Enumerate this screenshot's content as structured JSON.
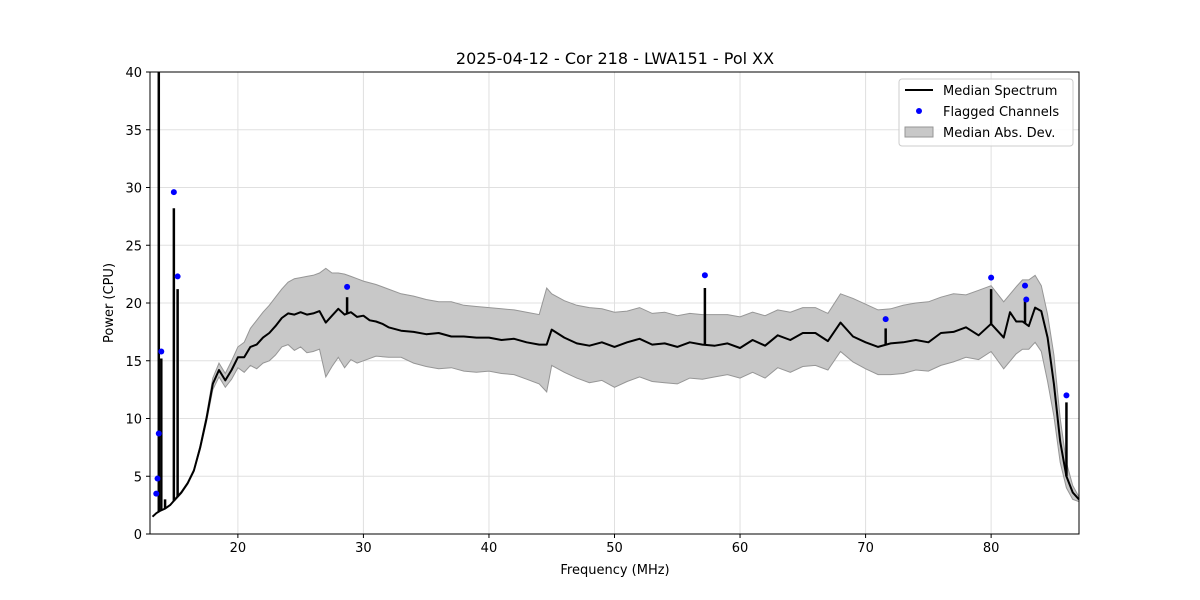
{
  "chart_data": {
    "type": "line",
    "title": "2025-04-12 - Cor 218 - LWA151 - Pol XX",
    "xlabel": "Frequency (MHz)",
    "ylabel": "Power (CPU)",
    "xlim": [
      13.0,
      87.0
    ],
    "ylim": [
      0,
      40
    ],
    "xticks": [
      20,
      30,
      40,
      50,
      60,
      70,
      80
    ],
    "yticks": [
      0,
      5,
      10,
      15,
      20,
      25,
      30,
      35,
      40
    ],
    "grid": true,
    "legend_position": "top-right",
    "colors": {
      "median": "#000000",
      "flagged": "#0000ff",
      "mad_fill": "#c8c8c8",
      "mad_edge": "#969696",
      "grid": "#e0e0e0"
    },
    "legend": [
      {
        "label": "Median Spectrum",
        "kind": "line"
      },
      {
        "label": "Flagged Channels",
        "kind": "marker"
      },
      {
        "label": "Median Abs. Dev.",
        "kind": "patch"
      }
    ],
    "series": [
      {
        "name": "Median Spectrum",
        "x": [
          13.2,
          13.5,
          13.8,
          14.2,
          14.6,
          15.0,
          15.5,
          16.0,
          16.5,
          17.0,
          17.5,
          18.0,
          18.5,
          19.0,
          19.5,
          20.0,
          20.5,
          21.0,
          21.5,
          22.0,
          22.5,
          23.0,
          23.5,
          24.0,
          24.5,
          25.0,
          25.5,
          26.0,
          26.5,
          27.0,
          27.5,
          28.0,
          28.5,
          29.0,
          29.5,
          30.0,
          30.5,
          31.0,
          31.5,
          32.0,
          33.0,
          34.0,
          35.0,
          36.0,
          37.0,
          38.0,
          39.0,
          40.0,
          41.0,
          42.0,
          43.0,
          44.0,
          44.6,
          45.0,
          46.0,
          47.0,
          48.0,
          49.0,
          50.0,
          51.0,
          52.0,
          53.0,
          54.0,
          55.0,
          56.0,
          57.0,
          58.0,
          59.0,
          60.0,
          61.0,
          62.0,
          63.0,
          64.0,
          65.0,
          66.0,
          67.0,
          68.0,
          69.0,
          70.0,
          71.0,
          72.0,
          73.0,
          74.0,
          75.0,
          76.0,
          77.0,
          78.0,
          79.0,
          80.0,
          81.0,
          81.5,
          82.0,
          82.5,
          83.0,
          83.5,
          84.0,
          84.5,
          85.0,
          85.5,
          86.0,
          86.5,
          87.0
        ],
        "y": [
          1.5,
          1.8,
          2.0,
          2.2,
          2.5,
          3.0,
          3.6,
          4.4,
          5.5,
          7.5,
          10.0,
          13.0,
          14.2,
          13.3,
          14.2,
          15.3,
          15.3,
          16.2,
          16.4,
          17.0,
          17.4,
          18.0,
          18.7,
          19.1,
          19.0,
          19.2,
          19.0,
          19.1,
          19.3,
          18.3,
          18.9,
          19.5,
          19.0,
          19.2,
          18.8,
          18.9,
          18.5,
          18.4,
          18.2,
          17.9,
          17.6,
          17.5,
          17.3,
          17.4,
          17.1,
          17.1,
          17.0,
          17.0,
          16.8,
          16.9,
          16.6,
          16.4,
          16.4,
          17.7,
          17.0,
          16.5,
          16.3,
          16.6,
          16.2,
          16.6,
          16.9,
          16.4,
          16.5,
          16.2,
          16.6,
          16.4,
          16.3,
          16.5,
          16.1,
          16.8,
          16.3,
          17.2,
          16.8,
          17.4,
          17.4,
          16.7,
          18.3,
          17.1,
          16.6,
          16.2,
          16.5,
          16.6,
          16.8,
          16.6,
          17.4,
          17.5,
          17.9,
          17.2,
          18.2,
          17.0,
          19.2,
          18.4,
          18.4,
          18.0,
          19.6,
          19.3,
          17.0,
          13.0,
          8.0,
          5.0,
          3.6,
          3.0
        ]
      },
      {
        "name": "Median Abs. Dev.",
        "x": [
          15.0,
          15.5,
          16.0,
          16.5,
          17.0,
          17.5,
          18.0,
          18.5,
          19.0,
          19.5,
          20.0,
          20.5,
          21.0,
          21.5,
          22.0,
          22.5,
          23.0,
          23.5,
          24.0,
          24.5,
          25.0,
          25.5,
          26.0,
          26.5,
          27.0,
          27.5,
          28.0,
          28.5,
          29.0,
          29.5,
          30.0,
          31.0,
          32.0,
          33.0,
          34.0,
          35.0,
          36.0,
          37.0,
          38.0,
          39.0,
          40.0,
          41.0,
          42.0,
          43.0,
          44.0,
          44.6,
          45.0,
          46.0,
          47.0,
          48.0,
          49.0,
          50.0,
          51.0,
          52.0,
          53.0,
          54.0,
          55.0,
          56.0,
          57.0,
          58.0,
          59.0,
          60.0,
          61.0,
          62.0,
          63.0,
          64.0,
          65.0,
          66.0,
          67.0,
          68.0,
          69.0,
          70.0,
          71.0,
          72.0,
          73.0,
          74.0,
          75.0,
          76.0,
          77.0,
          78.0,
          79.0,
          80.0,
          81.0,
          82.0,
          82.5,
          83.0,
          83.5,
          84.0,
          84.5,
          85.0,
          85.5,
          86.0,
          86.5,
          87.0
        ],
        "upper": [
          3.1,
          3.7,
          4.5,
          5.6,
          7.7,
          10.3,
          13.5,
          14.8,
          13.9,
          15.0,
          16.2,
          16.6,
          17.8,
          18.5,
          19.2,
          19.8,
          20.5,
          21.2,
          21.8,
          22.1,
          22.2,
          22.3,
          22.4,
          22.6,
          23.0,
          22.6,
          22.6,
          22.5,
          22.3,
          22.1,
          21.9,
          21.6,
          21.2,
          20.8,
          20.6,
          20.3,
          20.1,
          20.1,
          19.8,
          19.7,
          19.6,
          19.5,
          19.4,
          19.2,
          19.0,
          21.3,
          20.8,
          20.2,
          19.8,
          19.6,
          19.5,
          19.2,
          19.3,
          19.6,
          19.1,
          19.2,
          18.9,
          19.1,
          19.0,
          19.0,
          19.0,
          18.8,
          19.2,
          18.9,
          19.4,
          19.2,
          19.6,
          19.6,
          19.1,
          20.8,
          20.4,
          19.9,
          19.4,
          19.5,
          19.8,
          20.0,
          20.1,
          20.5,
          20.8,
          20.7,
          21.1,
          21.5,
          20.1,
          21.4,
          22.0,
          22.0,
          22.4,
          21.5,
          19.0,
          15.5,
          10.0,
          6.2,
          4.2,
          3.2
        ],
        "lower": [
          2.9,
          3.5,
          4.3,
          5.4,
          7.3,
          9.7,
          12.5,
          13.6,
          12.7,
          13.4,
          14.4,
          14.0,
          14.6,
          14.3,
          14.8,
          15.0,
          15.5,
          16.2,
          16.4,
          15.9,
          16.2,
          15.7,
          15.8,
          16.0,
          13.6,
          14.5,
          15.3,
          14.4,
          15.1,
          14.8,
          15.0,
          15.4,
          15.3,
          15.3,
          14.8,
          14.5,
          14.3,
          14.4,
          14.1,
          14.0,
          14.1,
          13.9,
          13.8,
          13.4,
          13.0,
          12.3,
          14.6,
          14.0,
          13.5,
          13.1,
          13.3,
          12.7,
          13.2,
          13.6,
          13.2,
          13.1,
          13.0,
          13.5,
          13.4,
          13.6,
          13.8,
          13.5,
          14.0,
          13.5,
          14.4,
          14.0,
          14.5,
          14.6,
          14.2,
          15.8,
          14.9,
          14.3,
          13.8,
          13.8,
          13.9,
          14.2,
          14.1,
          14.6,
          14.9,
          15.3,
          15.1,
          15.8,
          14.3,
          15.6,
          16.0,
          16.0,
          16.6,
          15.8,
          13.2,
          10.2,
          6.2,
          4.0,
          3.0,
          2.8
        ]
      },
      {
        "name": "Flagged Channels",
        "x": [
          13.5,
          13.6,
          13.7,
          13.9,
          14.9,
          15.2,
          28.7,
          57.2,
          71.6,
          80.0,
          82.7,
          82.8,
          86.0
        ],
        "y": [
          3.5,
          4.8,
          8.7,
          15.8,
          29.6,
          22.3,
          21.4,
          22.4,
          18.6,
          22.2,
          21.5,
          20.3,
          12.0
        ]
      },
      {
        "name": "Spikes",
        "spikes": [
          {
            "x": 13.7,
            "top": 40.0
          },
          {
            "x": 13.9,
            "top": 15.2
          },
          {
            "x": 14.2,
            "top": 3.0
          },
          {
            "x": 14.9,
            "top": 28.2
          },
          {
            "x": 15.2,
            "top": 21.2
          },
          {
            "x": 28.7,
            "top": 20.5
          },
          {
            "x": 57.2,
            "top": 21.3
          },
          {
            "x": 71.6,
            "top": 17.8
          },
          {
            "x": 80.0,
            "top": 21.2
          },
          {
            "x": 82.7,
            "top": 20.3
          },
          {
            "x": 86.0,
            "top": 11.4
          }
        ]
      }
    ]
  }
}
